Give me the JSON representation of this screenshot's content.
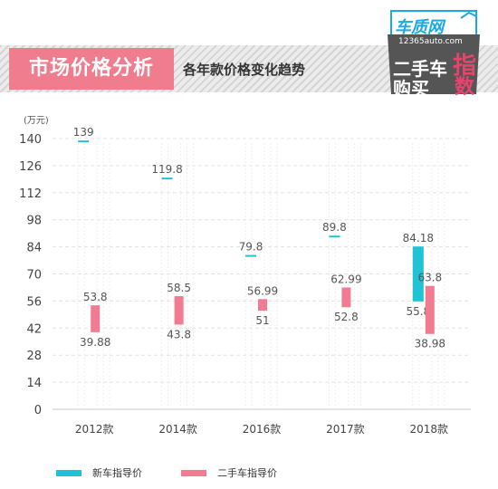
{
  "header": {
    "title": "市场价格分析",
    "subtitle": "各年款价格变化趋势"
  },
  "logo": {
    "brand": "车质网",
    "url": "12365auto.com",
    "line1": "二手车",
    "line2": "购买",
    "accent1": "指",
    "accent2": "数"
  },
  "colors": {
    "new_car": "#20c3d4",
    "used_car": "#f27b91",
    "title_bg": "#f07d8e"
  },
  "chart_data": {
    "type": "bar",
    "unit_label": "(万元)",
    "ylim": [
      0,
      140
    ],
    "yticks": [
      0,
      14,
      28,
      42,
      56,
      70,
      84,
      98,
      112,
      126,
      140
    ],
    "categories": [
      "2012款",
      "2014款",
      "2016款",
      "2017款",
      "2018款"
    ],
    "series": [
      {
        "name": "新车指导价",
        "ranges": [
          {
            "high": 139,
            "high_label": "139"
          },
          {
            "high": 119.8,
            "high_label": "119.8"
          },
          {
            "high": 79.8,
            "high_label": "79.8"
          },
          {
            "high": 89.8,
            "high_label": "89.8"
          },
          {
            "low": 55.8,
            "high": 84.18,
            "low_label": "55.8",
            "high_label": "84.18"
          }
        ]
      },
      {
        "name": "二手车指导价",
        "ranges": [
          {
            "low": 39.88,
            "high": 53.8,
            "low_label": "39.88",
            "high_label": "53.8"
          },
          {
            "low": 43.8,
            "high": 58.5,
            "low_label": "43.8",
            "high_label": "58.5"
          },
          {
            "low": 51,
            "high": 56.99,
            "low_label": "51",
            "high_label": "56.99"
          },
          {
            "low": 52.8,
            "high": 62.99,
            "low_label": "52.8",
            "high_label": "62.99"
          },
          {
            "low": 38.98,
            "high": 63.8,
            "low_label": "38.98",
            "high_label": "63.8"
          }
        ]
      }
    ],
    "grid": true,
    "legend_position": "bottom"
  }
}
